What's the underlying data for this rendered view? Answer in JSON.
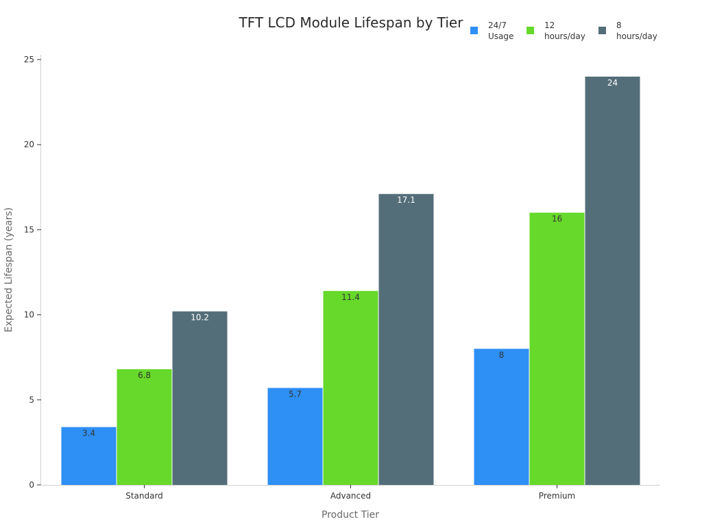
{
  "chart_data": {
    "type": "bar",
    "title": "TFT LCD Module Lifespan by Tier",
    "xlabel": "Product Tier",
    "ylabel": "Expected Lifespan (years)",
    "categories": [
      "Standard",
      "Advanced",
      "Premium"
    ],
    "series": [
      {
        "name": "24/7 Usage",
        "values": [
          3.4,
          5.7,
          8
        ],
        "color": "#2e8ff5",
        "label_color": "#333333"
      },
      {
        "name": "12 hours/day",
        "values": [
          6.8,
          11.4,
          16
        ],
        "color": "#66d92a",
        "label_color": "#333333"
      },
      {
        "name": "8 hours/day",
        "values": [
          10.2,
          17.1,
          24
        ],
        "color": "#546e79",
        "label_color": "#ffffff"
      }
    ],
    "data_labels": [
      [
        "3.4",
        "5.7",
        "8"
      ],
      [
        "6.8",
        "11.4",
        "16"
      ],
      [
        "10.2",
        "17.1",
        "24"
      ]
    ],
    "ylim": [
      0,
      25
    ],
    "yticks": [
      0,
      5,
      10,
      15,
      20,
      25
    ],
    "ytick_labels": [
      "0",
      "5",
      "10",
      "15",
      "20",
      "25"
    ],
    "grid": false,
    "legend_position": "top-right",
    "legend": [
      {
        "line1": "24/7",
        "line2": "Usage"
      },
      {
        "line1": "12",
        "line2": "hours/day"
      },
      {
        "line1": "8",
        "line2": "hours/day"
      }
    ]
  }
}
